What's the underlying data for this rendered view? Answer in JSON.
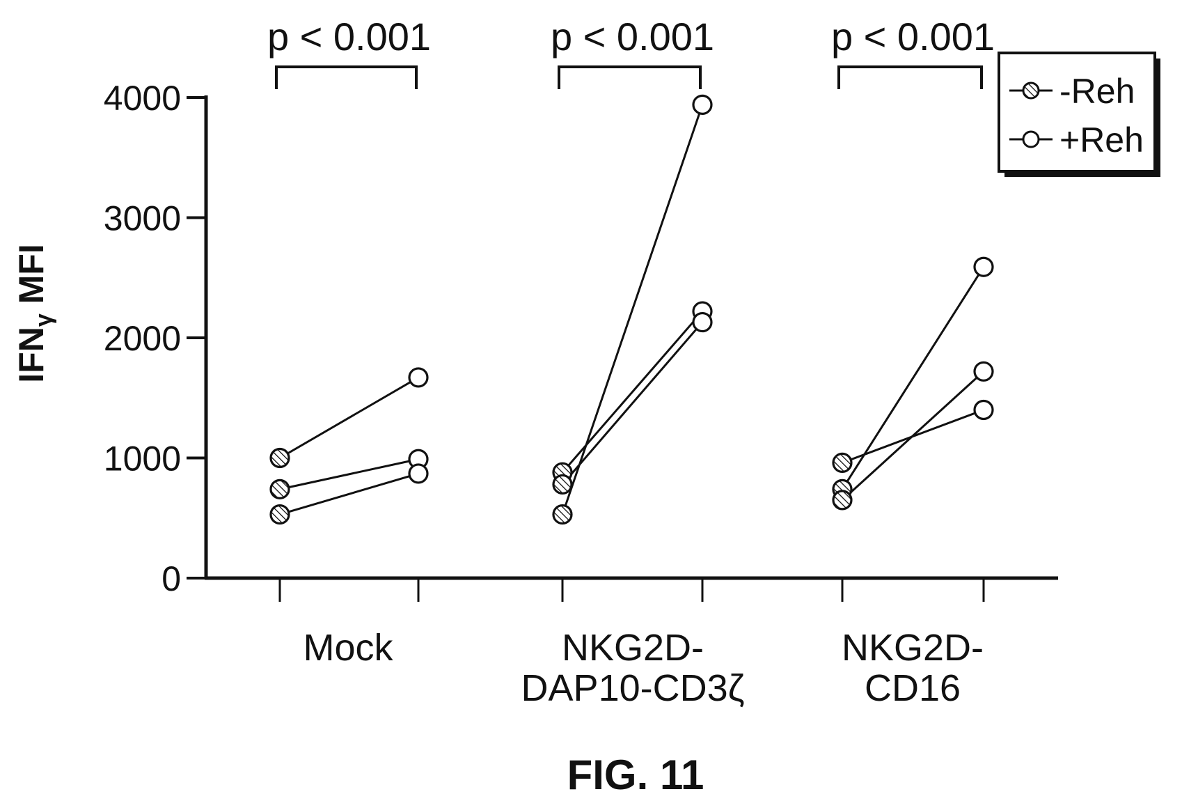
{
  "figure_label": "FIG. 11",
  "chart_data": {
    "type": "line",
    "ylabel_main": "IFN",
    "ylabel_sub": "γ",
    "ylabel_tail": " MFI",
    "ylim": [
      0,
      4000
    ],
    "yticks": [
      "0",
      "1000",
      "2000",
      "3000",
      "4000"
    ],
    "ytick_values": [
      0,
      1000,
      2000,
      3000,
      4000
    ],
    "categories": [
      {
        "lines": [
          "Mock"
        ]
      },
      {
        "lines": [
          "NKG2D-",
          "DAP10-CD3ζ"
        ]
      },
      {
        "lines": [
          "NKG2D-",
          "CD16"
        ]
      }
    ],
    "conditions": [
      "-Reh",
      "+Reh"
    ],
    "legend": {
      "position": "top-right",
      "items": [
        "-Reh",
        "+Reh"
      ]
    },
    "significance": [
      "p < 0.001",
      "p < 0.001",
      "p < 0.001"
    ],
    "pairs": [
      [
        [
          1000,
          1670
        ],
        [
          740,
          990
        ],
        [
          530,
          870
        ]
      ],
      [
        [
          880,
          2220
        ],
        [
          780,
          2130
        ],
        [
          530,
          3940
        ]
      ],
      [
        [
          960,
          1400
        ],
        [
          740,
          2590
        ],
        [
          650,
          1720
        ]
      ]
    ],
    "grid": false
  }
}
